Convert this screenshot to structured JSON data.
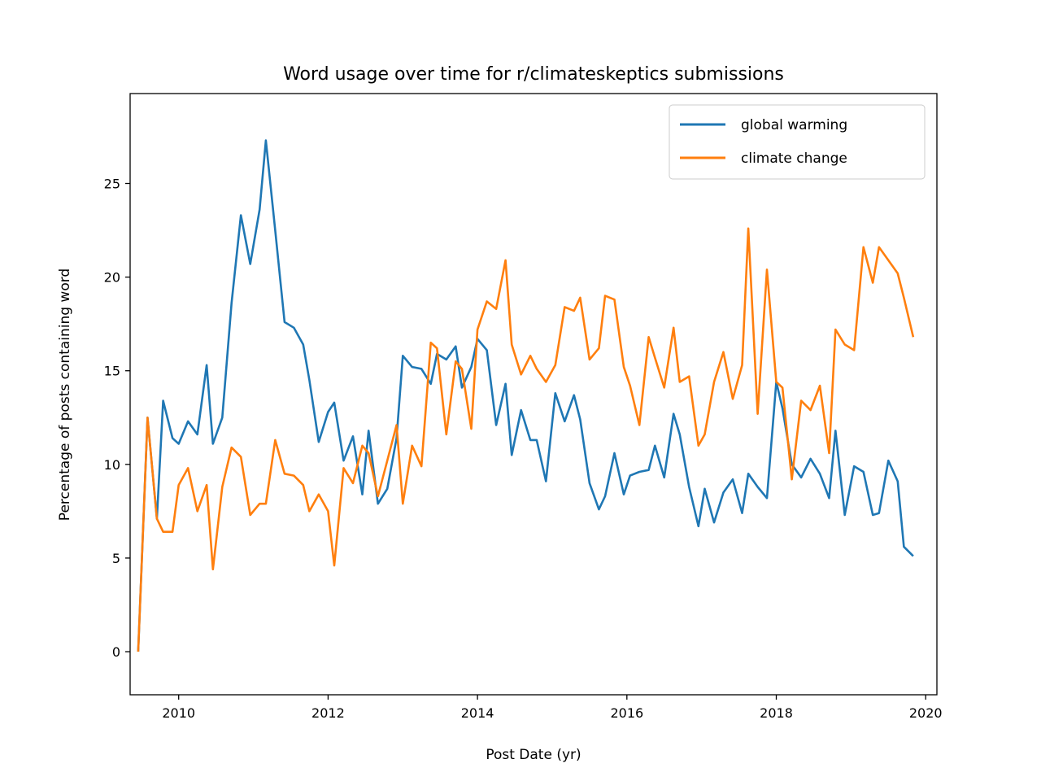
{
  "chart_data": {
    "type": "line",
    "title": "Word usage over time for r/climateskeptics submissions",
    "xlabel": "Post Date (yr)",
    "ylabel": "Percentage of posts containing word",
    "xlim": [
      2009.35,
      2020.15
    ],
    "ylim": [
      -2.3,
      29.8
    ],
    "xticks": [
      2010,
      2012,
      2014,
      2016,
      2018,
      2020
    ],
    "yticks": [
      0,
      5,
      10,
      15,
      20,
      25
    ],
    "grid": false,
    "legend_position": "top-right",
    "series": [
      {
        "name": "global warming",
        "color": "#1f77b4",
        "x": [
          2009.458,
          2009.583,
          2009.708,
          2009.792,
          2009.917,
          2010.0,
          2010.125,
          2010.25,
          2010.375,
          2010.458,
          2010.583,
          2010.708,
          2010.833,
          2010.958,
          2011.083,
          2011.167,
          2011.292,
          2011.417,
          2011.542,
          2011.667,
          2011.75,
          2011.875,
          2012.0,
          2012.083,
          2012.208,
          2012.333,
          2012.458,
          2012.542,
          2012.667,
          2012.792,
          2012.917,
          2013.0,
          2013.125,
          2013.25,
          2013.375,
          2013.458,
          2013.583,
          2013.708,
          2013.792,
          2013.917,
          2014.0,
          2014.125,
          2014.25,
          2014.375,
          2014.458,
          2014.583,
          2014.708,
          2014.792,
          2014.917,
          2015.042,
          2015.167,
          2015.292,
          2015.375,
          2015.5,
          2015.625,
          2015.708,
          2015.833,
          2015.958,
          2016.042,
          2016.167,
          2016.292,
          2016.375,
          2016.5,
          2016.625,
          2016.708,
          2016.833,
          2016.958,
          2017.042,
          2017.167,
          2017.292,
          2017.417,
          2017.542,
          2017.625,
          2017.75,
          2017.875,
          2018.0,
          2018.083,
          2018.208,
          2018.333,
          2018.458,
          2018.583,
          2018.708,
          2018.792,
          2018.917,
          2019.042,
          2019.167,
          2019.292,
          2019.375,
          2019.5,
          2019.625,
          2019.708,
          2019.833
        ],
        "values": [
          0.0,
          12.5,
          7.1,
          13.4,
          11.4,
          11.1,
          12.3,
          11.6,
          15.3,
          11.1,
          12.5,
          18.6,
          23.3,
          20.7,
          23.6,
          27.3,
          22.5,
          17.6,
          17.3,
          16.4,
          14.5,
          11.2,
          12.8,
          13.3,
          10.2,
          11.5,
          8.4,
          11.8,
          7.9,
          8.7,
          11.4,
          15.8,
          15.2,
          15.1,
          14.3,
          15.9,
          15.6,
          16.3,
          14.1,
          15.2,
          16.7,
          16.1,
          12.1,
          14.3,
          10.5,
          12.9,
          11.3,
          11.3,
          9.1,
          13.8,
          12.3,
          13.7,
          12.4,
          9.0,
          7.6,
          8.3,
          10.6,
          8.4,
          9.4,
          9.6,
          9.7,
          11.0,
          9.3,
          12.7,
          11.6,
          8.8,
          6.7,
          8.7,
          6.9,
          8.5,
          9.2,
          7.4,
          9.5,
          8.8,
          8.2,
          14.4,
          13.0,
          10.0,
          9.3,
          10.3,
          9.5,
          8.2,
          11.8,
          7.3,
          9.9,
          9.6,
          7.3,
          7.4,
          10.2,
          9.1,
          5.6,
          5.1
        ]
      },
      {
        "name": "climate change",
        "color": "#ff7f0e",
        "x": [
          2009.458,
          2009.583,
          2009.708,
          2009.792,
          2009.917,
          2010.0,
          2010.125,
          2010.25,
          2010.375,
          2010.458,
          2010.583,
          2010.708,
          2010.833,
          2010.958,
          2011.083,
          2011.167,
          2011.292,
          2011.417,
          2011.542,
          2011.667,
          2011.75,
          2011.875,
          2012.0,
          2012.083,
          2012.208,
          2012.333,
          2012.458,
          2012.542,
          2012.667,
          2012.792,
          2012.917,
          2013.0,
          2013.125,
          2013.25,
          2013.375,
          2013.458,
          2013.583,
          2013.708,
          2013.792,
          2013.917,
          2014.0,
          2014.125,
          2014.25,
          2014.375,
          2014.458,
          2014.583,
          2014.708,
          2014.792,
          2014.917,
          2015.042,
          2015.167,
          2015.292,
          2015.375,
          2015.5,
          2015.625,
          2015.708,
          2015.833,
          2015.958,
          2016.042,
          2016.167,
          2016.292,
          2016.375,
          2016.5,
          2016.625,
          2016.708,
          2016.833,
          2016.958,
          2017.042,
          2017.167,
          2017.292,
          2017.417,
          2017.542,
          2017.625,
          2017.75,
          2017.875,
          2018.0,
          2018.083,
          2018.208,
          2018.333,
          2018.458,
          2018.583,
          2018.708,
          2018.792,
          2018.917,
          2019.042,
          2019.167,
          2019.292,
          2019.375,
          2019.5,
          2019.625,
          2019.708,
          2019.833
        ],
        "values": [
          0.0,
          12.5,
          7.1,
          6.4,
          6.4,
          8.9,
          9.8,
          7.5,
          8.9,
          4.4,
          8.8,
          10.9,
          10.4,
          7.3,
          7.9,
          7.9,
          11.3,
          9.5,
          9.4,
          8.9,
          7.5,
          8.4,
          7.5,
          4.6,
          9.8,
          9.0,
          11.0,
          10.6,
          8.3,
          10.2,
          12.1,
          7.9,
          11.0,
          9.9,
          16.5,
          16.2,
          11.6,
          15.5,
          15.1,
          11.9,
          17.2,
          18.7,
          18.3,
          20.9,
          16.4,
          14.8,
          15.8,
          15.1,
          14.4,
          15.3,
          18.4,
          18.2,
          18.9,
          15.6,
          16.2,
          19.0,
          18.8,
          15.2,
          14.2,
          12.1,
          16.8,
          15.7,
          14.1,
          17.3,
          14.4,
          14.7,
          11.0,
          11.6,
          14.4,
          16.0,
          13.5,
          15.3,
          22.6,
          12.7,
          20.4,
          14.4,
          14.1,
          9.2,
          13.4,
          12.9,
          14.2,
          10.6,
          17.2,
          16.4,
          16.1,
          21.6,
          19.7,
          21.6,
          20.9,
          20.2,
          18.9,
          16.8
        ]
      }
    ]
  }
}
